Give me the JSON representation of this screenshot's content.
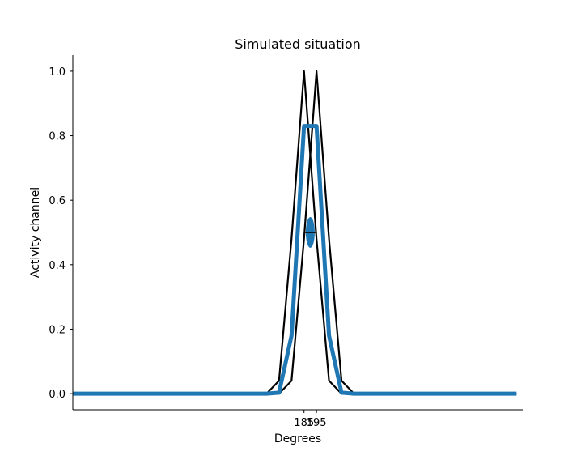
{
  "chart_data": {
    "type": "line",
    "title": "Simulated situation",
    "xlabel": "Degrees",
    "ylabel": "Activity channel",
    "xlim": [
      0,
      360
    ],
    "ylim": [
      -0.05,
      1.05
    ],
    "xticks": [
      185,
      195
    ],
    "xtick_labels": [
      "185",
      "195"
    ],
    "yticks": [
      0.0,
      0.2,
      0.4,
      0.6,
      0.8,
      1.0
    ],
    "ytick_labels": [
      "0.0",
      "0.2",
      "0.4",
      "0.6",
      "0.8",
      "1.0"
    ],
    "grid": false,
    "series": [
      {
        "color": "#000000",
        "x": [
          0,
          155,
          165,
          175,
          185,
          195,
          205,
          215,
          225,
          355
        ],
        "y": [
          0,
          0,
          0.04,
          0.48,
          1.0,
          0.48,
          0.04,
          0,
          0,
          0
        ]
      },
      {
        "color": "#000000",
        "x": [
          0,
          165,
          175,
          185,
          195,
          205,
          215,
          225,
          355
        ],
        "y": [
          0,
          0,
          0.04,
          0.48,
          1.0,
          0.48,
          0.04,
          0,
          0
        ]
      },
      {
        "color": "#1f77b4",
        "x": [
          0,
          155,
          165,
          175,
          185,
          195,
          205,
          215,
          225,
          355
        ],
        "y": [
          0,
          0,
          0.003,
          0.18,
          0.83,
          0.83,
          0.18,
          0.003,
          0,
          0
        ]
      }
    ],
    "marker": {
      "color": "#1f77b4",
      "x": 190,
      "y": 0.5,
      "errorbar_x": [
        185,
        195
      ]
    }
  }
}
